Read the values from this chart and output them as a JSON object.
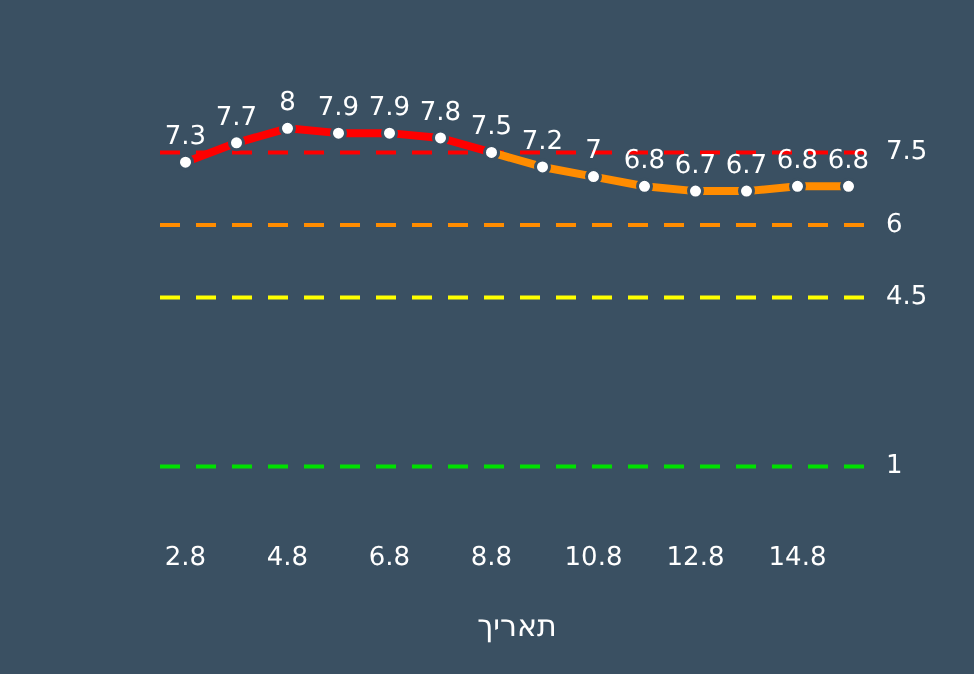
{
  "chart_data": {
    "type": "line",
    "xlabel": "תאריך",
    "categories": [
      "2.8",
      null,
      "4.8",
      null,
      "6.8",
      null,
      "8.8",
      null,
      "10.8",
      null,
      "12.8",
      null,
      "14.8",
      null
    ],
    "series": [
      {
        "color": "#ff0000",
        "values": [
          7.3,
          7.7,
          8,
          7.9,
          7.9,
          7.8,
          7.5,
          null,
          null,
          null,
          null,
          null,
          null,
          null
        ],
        "value_labels": [
          "7.3",
          "7.7",
          "8",
          "7.9",
          "7.9",
          "7.8",
          "7.5",
          null,
          null,
          null,
          null,
          null,
          null,
          null
        ]
      },
      {
        "color": "#ff8c00",
        "values": [
          null,
          null,
          null,
          null,
          null,
          null,
          7.5,
          7.2,
          7,
          6.8,
          6.7,
          6.7,
          6.8,
          6.8
        ],
        "value_labels": [
          null,
          null,
          null,
          null,
          null,
          null,
          null,
          "7.2",
          "7",
          "6.8",
          "6.7",
          "6.7",
          "6.8",
          "6.8"
        ]
      }
    ],
    "tick_labels": "x",
    "marker": "circle",
    "line_style": "solid",
    "grid": false,
    "legend": false,
    "ref_lines": [
      {
        "axis": "y",
        "value": 7.5,
        "label": "7.5",
        "color": "#ff0000",
        "line_style": "dashed"
      },
      {
        "axis": "y",
        "value": 6,
        "label": "6",
        "color": "#ff8c00",
        "line_style": "dashed"
      },
      {
        "axis": "y",
        "value": 4.5,
        "label": "4.5",
        "color": "#ffff00",
        "line_style": "dashed"
      },
      {
        "axis": "y",
        "value": 1,
        "label": "1",
        "color": "#00e000",
        "line_style": "dashed"
      }
    ]
  }
}
